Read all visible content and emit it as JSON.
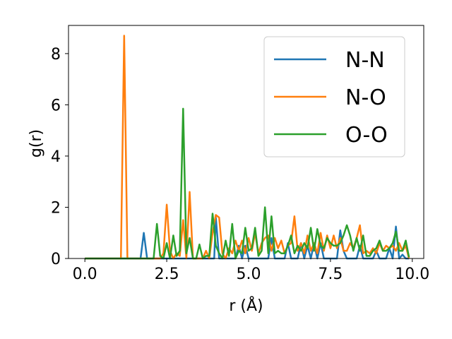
{
  "chart_data": {
    "type": "line",
    "title": "",
    "xlabel": "r (Å)",
    "ylabel": "g(r)",
    "xlim": [
      -0.5,
      10.35
    ],
    "ylim": [
      0,
      9.1
    ],
    "xticks": [
      0.0,
      2.5,
      5.0,
      7.5,
      10.0
    ],
    "xtick_labels": [
      "0.0",
      "2.5",
      "5.0",
      "7.5",
      "10.0"
    ],
    "yticks": [
      0,
      2,
      4,
      6,
      8
    ],
    "ytick_labels": [
      "0",
      "2",
      "4",
      "6",
      "8"
    ],
    "grid": false,
    "legend_position": "top-right",
    "colors": {
      "N-N": "#1f77b4",
      "N-O": "#ff7f0e",
      "O-O": "#2ca02c"
    },
    "series": [
      {
        "name": "N-N",
        "x": [
          0,
          1.7,
          1.8,
          1.9,
          3.95,
          4.0,
          4.1,
          4.6,
          4.7,
          4.8,
          4.9,
          5.0,
          5.1,
          5.6,
          5.7,
          5.8,
          6.1,
          6.2,
          6.3,
          6.5,
          6.6,
          6.7,
          6.8,
          6.9,
          7.0,
          7.1,
          7.2,
          7.3,
          7.7,
          7.8,
          7.9,
          8.0,
          8.3,
          8.4,
          8.5,
          8.8,
          8.9,
          9.0,
          9.2,
          9.3,
          9.4,
          9.5,
          9.6,
          9.7,
          9.8,
          9.9
        ],
        "y": [
          0,
          0,
          1.0,
          0,
          0,
          1.6,
          0,
          0,
          0.5,
          0,
          0.5,
          0,
          0,
          0,
          0.8,
          0,
          0,
          0.6,
          0,
          0,
          0.6,
          0,
          0.5,
          0,
          0.6,
          0,
          0.6,
          0,
          0,
          1.1,
          0.3,
          0,
          0,
          0.5,
          0,
          0,
          0.3,
          0,
          0,
          0.4,
          0,
          1.25,
          0,
          0.15,
          0,
          0
        ]
      },
      {
        "name": "N-O",
        "x": [
          0,
          1.1,
          1.2,
          1.3,
          2.3,
          2.4,
          2.5,
          2.6,
          2.7,
          2.8,
          2.9,
          3.0,
          3.1,
          3.2,
          3.3,
          3.6,
          3.7,
          3.8,
          3.9,
          4.0,
          4.1,
          4.2,
          4.3,
          4.4,
          4.5,
          4.6,
          4.7,
          4.8,
          4.9,
          5.0,
          5.1,
          5.2,
          5.3,
          5.4,
          5.5,
          5.6,
          5.7,
          5.8,
          5.9,
          6.0,
          6.1,
          6.2,
          6.3,
          6.4,
          6.5,
          6.6,
          6.7,
          6.8,
          6.9,
          7.0,
          7.1,
          7.2,
          7.3,
          7.4,
          7.5,
          7.6,
          7.7,
          7.8,
          7.9,
          8.0,
          8.1,
          8.2,
          8.3,
          8.4,
          8.5,
          8.6,
          8.7,
          8.8,
          8.9,
          9.0,
          9.1,
          9.2,
          9.3,
          9.4,
          9.5,
          9.6,
          9.7,
          9.8,
          9.9
        ],
        "y": [
          0,
          0,
          8.7,
          0,
          0,
          0.2,
          2.1,
          0.3,
          0,
          0.2,
          0.1,
          1.5,
          0,
          2.6,
          0,
          0,
          0.3,
          0,
          1.0,
          1.7,
          1.6,
          0.2,
          0,
          0.4,
          0.2,
          0.7,
          0.3,
          0.7,
          0.2,
          0.8,
          0.3,
          1.0,
          0.2,
          0.6,
          0.8,
          0.9,
          0.3,
          0.8,
          0.4,
          0.7,
          0.2,
          0.5,
          0.6,
          1.65,
          0.3,
          0.6,
          0.2,
          0.9,
          0.3,
          0.6,
          0.2,
          1.0,
          0.3,
          0.9,
          0.4,
          0.9,
          0.4,
          0.8,
          0.3,
          0.3,
          0.6,
          0.4,
          0.8,
          1.3,
          0.2,
          0.3,
          0.2,
          0.4,
          0.2,
          0.6,
          0.3,
          0.5,
          0.4,
          0.5,
          0.3,
          0.6,
          0.3,
          0.5,
          0
        ]
      },
      {
        "name": "O-O",
        "x": [
          0,
          2.1,
          2.2,
          2.3,
          2.4,
          2.5,
          2.6,
          2.7,
          2.8,
          2.9,
          3.0,
          3.1,
          3.2,
          3.3,
          3.4,
          3.5,
          3.6,
          3.7,
          3.8,
          3.9,
          4.0,
          4.1,
          4.2,
          4.3,
          4.4,
          4.5,
          4.6,
          4.7,
          4.8,
          4.9,
          5.0,
          5.1,
          5.2,
          5.3,
          5.4,
          5.5,
          5.6,
          5.7,
          5.8,
          5.9,
          6.0,
          6.1,
          6.2,
          6.3,
          6.4,
          6.5,
          6.6,
          6.7,
          6.8,
          6.9,
          7.0,
          7.1,
          7.2,
          7.3,
          7.4,
          7.5,
          7.6,
          7.7,
          7.8,
          7.9,
          8.0,
          8.1,
          8.2,
          8.3,
          8.4,
          8.5,
          8.6,
          8.7,
          8.8,
          8.9,
          9.0,
          9.1,
          9.2,
          9.3,
          9.4,
          9.5,
          9.6,
          9.7,
          9.8,
          9.9
        ],
        "y": [
          0,
          0,
          1.35,
          0.1,
          0,
          0.6,
          0,
          0.9,
          0.1,
          0.3,
          5.85,
          0.2,
          0.8,
          0,
          0,
          0.55,
          0,
          0.1,
          0.1,
          1.75,
          0.5,
          0.2,
          0,
          0.7,
          0.1,
          1.35,
          0,
          0.3,
          0.2,
          1.2,
          0.3,
          0.4,
          1.2,
          0.1,
          0.3,
          2.0,
          0.2,
          1.65,
          0.2,
          0.3,
          0.2,
          0.2,
          0.5,
          0.9,
          0.2,
          0.5,
          0.3,
          0.6,
          0.4,
          1.2,
          0.3,
          1.15,
          0.5,
          0.4,
          0.8,
          0.6,
          0.5,
          0.5,
          0.6,
          0.9,
          1.3,
          0.9,
          0.3,
          0.8,
          0.3,
          0.9,
          0.1,
          0.1,
          0.3,
          0.4,
          0.7,
          0.3,
          0.3,
          0.4,
          0.6,
          1.05,
          0.3,
          0.3,
          0.7,
          0.05
        ]
      }
    ]
  }
}
